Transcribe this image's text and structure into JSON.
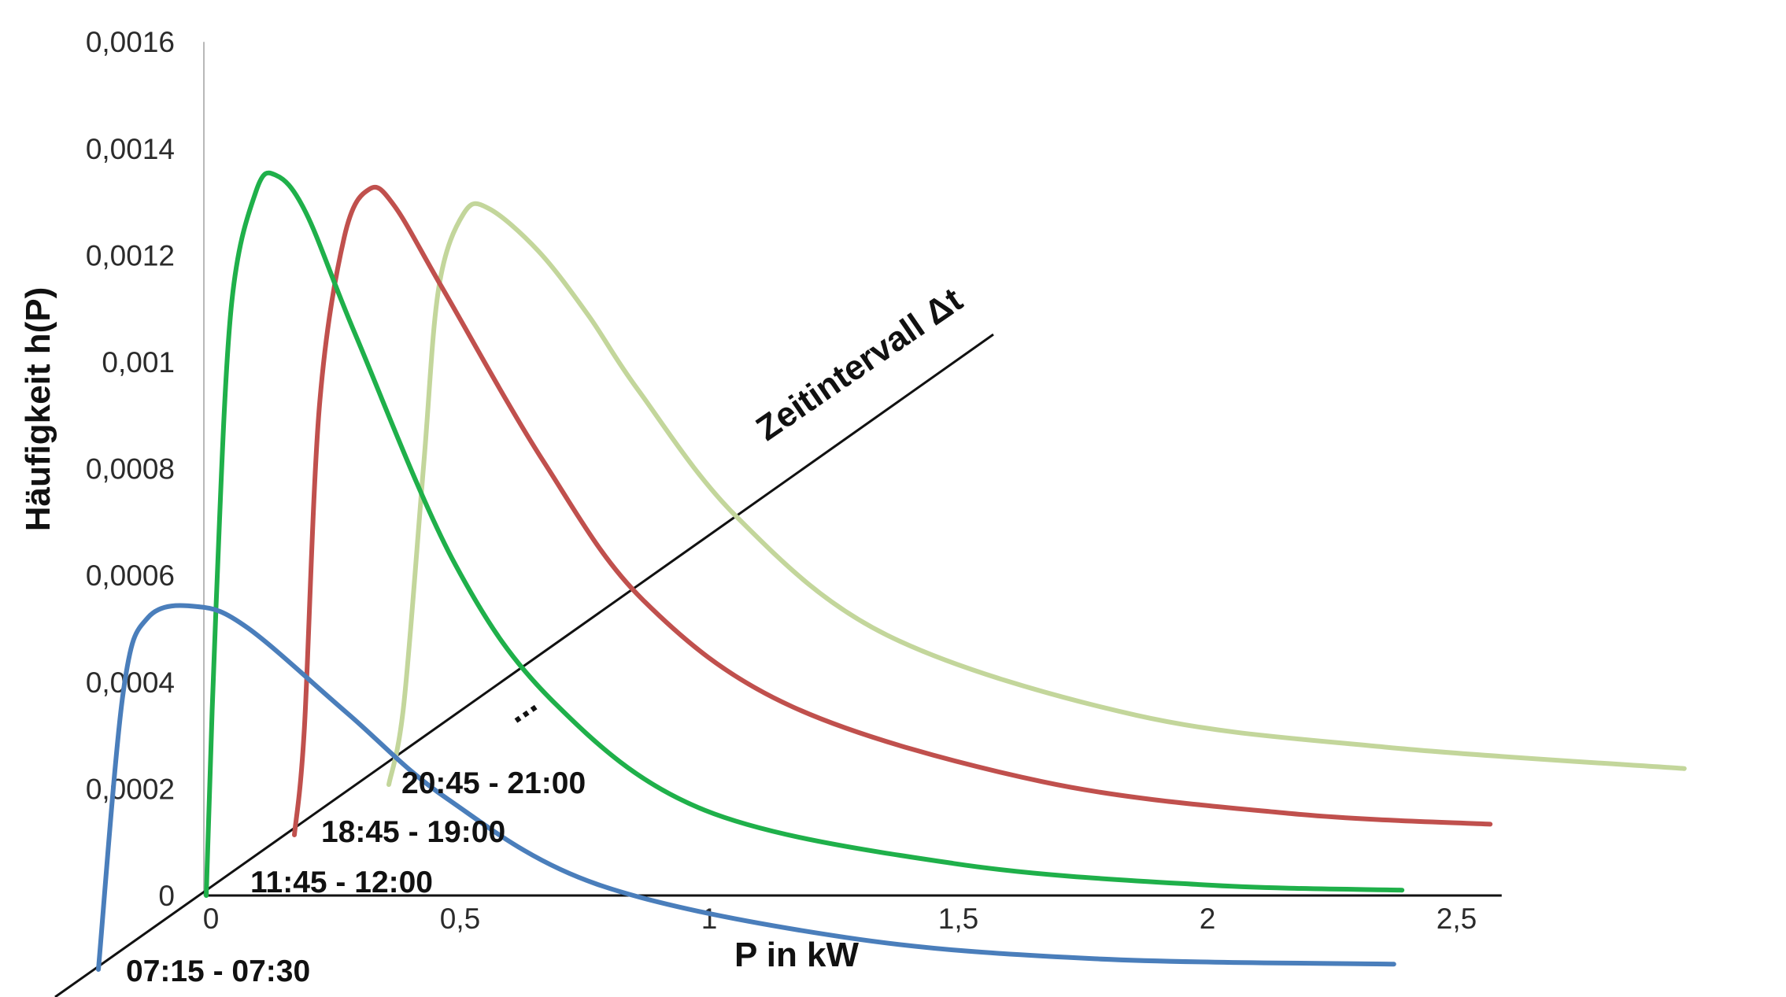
{
  "chart_data": {
    "type": "line",
    "xlabel": "P in kW",
    "ylabel": "Häufigkeit h(P)",
    "depth_axis_label": "Zeitintervall Δt",
    "ellipsis": "...",
    "x_ticks": [
      "0",
      "0,5",
      "1",
      "1,5",
      "2",
      "2,5"
    ],
    "y_ticks": [
      "0",
      "0,0002",
      "0,0004",
      "0,0006",
      "0,0008",
      "0,001",
      "0,0012",
      "0,0014",
      "0,0016"
    ],
    "xlim": [
      0,
      2.6
    ],
    "ylim": [
      0,
      0.0016
    ],
    "series": [
      {
        "name": "07:15 - 07:30",
        "color": "#4a7ebb",
        "x": [
          0.0,
          0.05,
          0.1,
          0.2,
          0.3,
          0.5,
          0.7,
          1.0,
          1.5,
          2.0,
          2.6
        ],
        "y": [
          0.0,
          0.00052,
          0.00066,
          0.00068,
          0.00064,
          0.00048,
          0.00032,
          0.00016,
          6e-05,
          2e-05,
          1e-05
        ]
      },
      {
        "name": "11:45 - 12:00",
        "color": "#1fb04a",
        "x": [
          0.0,
          0.02,
          0.05,
          0.1,
          0.14,
          0.2,
          0.3,
          0.5,
          0.7,
          1.0,
          1.5,
          2.0,
          2.4
        ],
        "y": [
          0.0,
          0.00055,
          0.0011,
          0.00132,
          0.00135,
          0.00128,
          0.00105,
          0.00062,
          0.00036,
          0.00016,
          6e-05,
          2e-05,
          1e-05
        ]
      },
      {
        "name": "18:45 - 19:00",
        "color": "#c0504d",
        "x": [
          0.0,
          0.02,
          0.05,
          0.1,
          0.15,
          0.2,
          0.3,
          0.5,
          0.7,
          1.0,
          1.5,
          2.0,
          2.4
        ],
        "y": [
          0.0,
          0.0002,
          0.0008,
          0.00112,
          0.00121,
          0.00118,
          0.00102,
          0.0007,
          0.00044,
          0.00024,
          0.0001,
          4e-05,
          2e-05
        ]
      },
      {
        "name": "20:45 - 21:00",
        "color": "#c3d69b",
        "x": [
          0.0,
          0.03,
          0.07,
          0.1,
          0.15,
          0.2,
          0.3,
          0.4,
          0.5,
          0.7,
          1.0,
          1.5,
          2.0,
          2.6
        ],
        "y": [
          0.0,
          0.00015,
          0.0006,
          0.00093,
          0.00107,
          0.00108,
          0.001,
          0.00088,
          0.00074,
          0.0005,
          0.00028,
          0.00013,
          7e-05,
          3e-05
        ]
      }
    ]
  }
}
